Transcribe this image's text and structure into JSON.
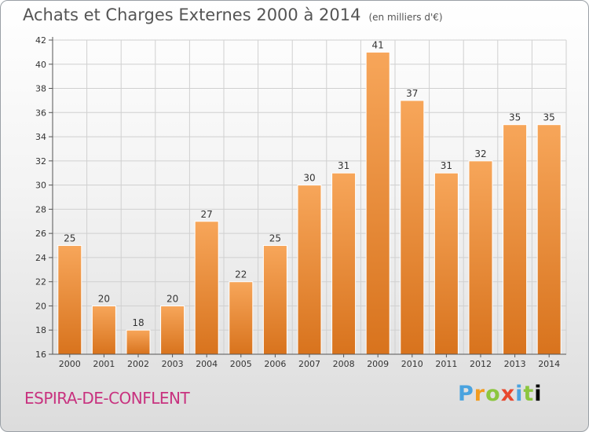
{
  "header": {
    "title": "Achats et Charges Externes 2000 à 2014",
    "unit": "(en milliers d'€)"
  },
  "footer": {
    "commune": "ESPIRA-DE-CONFLENT",
    "brand": "Proxiti"
  },
  "colors": {
    "bar_top": "#f7a65a",
    "bar_bottom": "#d8731d",
    "commune_text": "#c8327f"
  },
  "chart_data": {
    "type": "bar",
    "title": "Achats et Charges Externes 2000 à 2014",
    "subtitle": "(en milliers d'€)",
    "xlabel": "",
    "ylabel": "",
    "categories": [
      "2000",
      "2001",
      "2002",
      "2003",
      "2004",
      "2005",
      "2006",
      "2007",
      "2008",
      "2009",
      "2010",
      "2011",
      "2012",
      "2013",
      "2014"
    ],
    "values": [
      25,
      20,
      18,
      20,
      27,
      22,
      25,
      30,
      31,
      41,
      37,
      31,
      32,
      35,
      35
    ],
    "ylim": [
      16,
      42
    ],
    "yticks": [
      16,
      18,
      20,
      22,
      24,
      26,
      28,
      30,
      32,
      34,
      36,
      38,
      40,
      42
    ],
    "grid": true,
    "legend": "none"
  }
}
